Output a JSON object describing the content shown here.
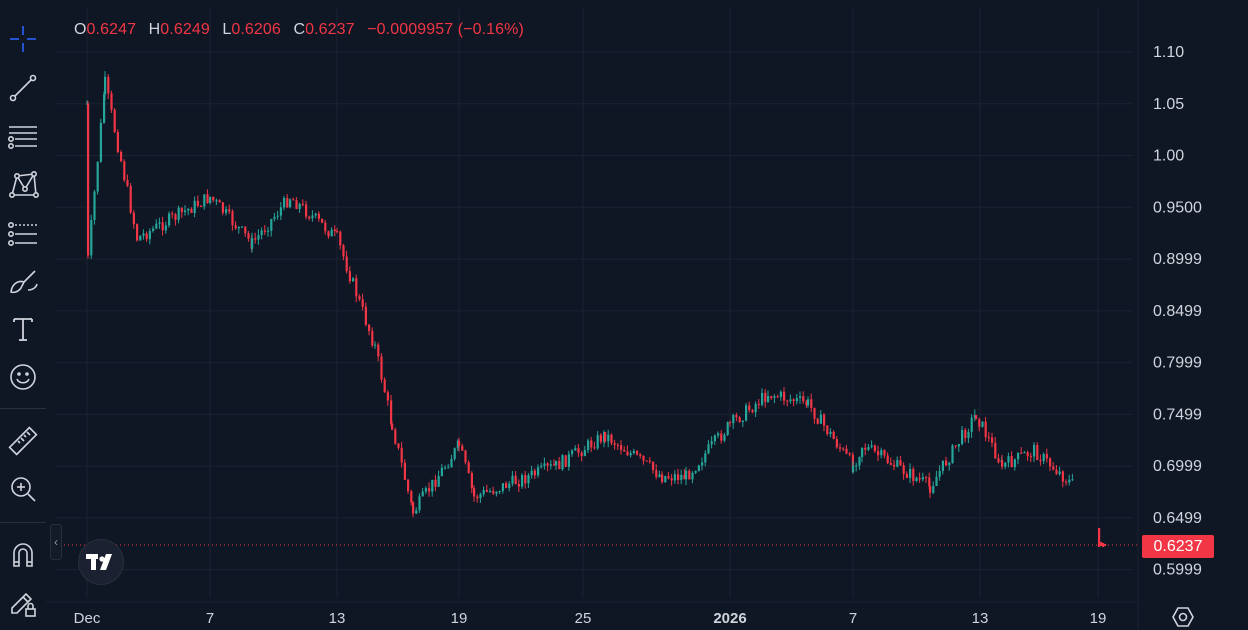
{
  "legend": {
    "o_label": "O",
    "o_value": "0.6247",
    "h_label": "H",
    "h_value": "0.6249",
    "l_label": "L",
    "l_value": "0.6206",
    "c_label": "C",
    "c_value": "0.6237",
    "change": "−0.0009957 (−0.16%)"
  },
  "last_price_label": "0.6237",
  "toolbar": {
    "items": [
      "crosshair-icon",
      "trendline-icon",
      "horizontal-lines-icon",
      "pattern-icon",
      "forecast-icon",
      "brush-icon",
      "text-icon",
      "emoji-icon",
      "ruler-icon",
      "zoom-icon",
      "magnet-icon",
      "lock-draw-icon"
    ]
  },
  "colors": {
    "up": "#26a69a",
    "down": "#f23645",
    "background": "#0f1624",
    "grid": "#1c2333",
    "text": "#d1d4dc"
  },
  "chart_data": {
    "type": "candlestick",
    "title": "",
    "y_ticks": [
      "1.10",
      "1.05",
      "1.00",
      "0.9500",
      "0.8999",
      "0.8499",
      "0.7999",
      "0.7499",
      "0.6999",
      "0.6499",
      "0.5999"
    ],
    "x_ticks": [
      "Dec",
      "7",
      "13",
      "19",
      "25",
      "2026",
      "7",
      "13",
      "19"
    ],
    "ylim": [
      0.58,
      1.12
    ],
    "last_price": 0.6237,
    "grid": true,
    "anchor_points": [
      {
        "x": "Dec",
        "close": 1.05
      },
      {
        "x": "Dec 1",
        "close": 0.9
      },
      {
        "x": "Dec 3",
        "close": 1.07
      },
      {
        "x": "Dec 7",
        "close": 0.92
      },
      {
        "x": "Dec 10",
        "close": 0.96
      },
      {
        "x": "Dec 11",
        "close": 0.915
      },
      {
        "x": "Dec 13",
        "close": 0.96
      },
      {
        "x": "Dec 15",
        "close": 0.92
      },
      {
        "x": "Dec 16",
        "close": 0.815
      },
      {
        "x": "Dec 17",
        "close": 0.74
      },
      {
        "x": "Dec 19",
        "close": 0.655
      },
      {
        "x": "Dec 20",
        "close": 0.72
      },
      {
        "x": "Dec 24",
        "close": 0.67
      },
      {
        "x": "Dec 26",
        "close": 0.7
      },
      {
        "x": "Dec 28",
        "close": 0.73
      },
      {
        "x": "Dec 29",
        "close": 0.69
      },
      {
        "x": "2026",
        "close": 0.69
      },
      {
        "x": "Jan 3",
        "close": 0.74
      },
      {
        "x": "Jan 5",
        "close": 0.77
      },
      {
        "x": "Jan 7",
        "close": 0.76
      },
      {
        "x": "Jan 8",
        "close": 0.7
      },
      {
        "x": "Jan 11",
        "close": 0.72
      },
      {
        "x": "Jan 13",
        "close": 0.68
      },
      {
        "x": "Jan 14",
        "close": 0.75
      },
      {
        "x": "Jan 16",
        "close": 0.7
      },
      {
        "x": "Jan 18",
        "close": 0.715
      },
      {
        "x": "Jan 19",
        "close": 0.68
      },
      {
        "x": "Jan 19 (last)",
        "close": 0.6237
      }
    ]
  }
}
